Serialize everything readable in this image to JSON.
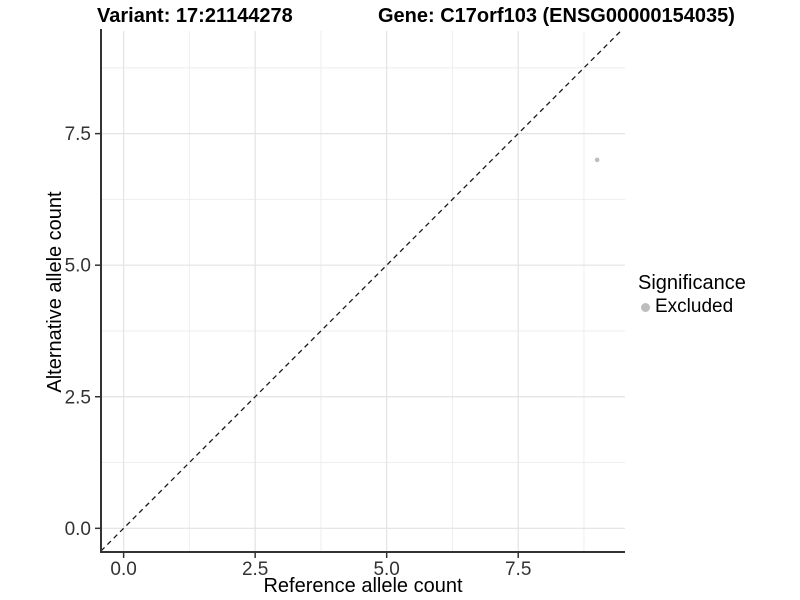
{
  "header": {
    "variant_title": "Variant: 17:21144278",
    "gene_title": "Gene: C17orf103 (ENSG00000154035)"
  },
  "legend": {
    "title": "Significance",
    "entries": [
      {
        "label": "Excluded",
        "color": "#bdbdbd"
      }
    ]
  },
  "chart_data": {
    "type": "scatter",
    "title": "Variant: 17:21144278 | Gene: C17orf103 (ENSG00000154035)",
    "xlabel": "Reference allele count",
    "ylabel": "Alternative allele count",
    "xlim": [
      -0.43,
      9.53
    ],
    "ylim": [
      -0.45,
      9.45
    ],
    "xticks": [
      0,
      2.5,
      5,
      7.5
    ],
    "xtick_labels": [
      "0.0",
      "2.5",
      "5.0",
      "7.5"
    ],
    "yticks": [
      0,
      2.5,
      5,
      7.5
    ],
    "ytick_labels": [
      "0.0",
      "2.5",
      "5.0",
      "7.5"
    ],
    "xticks_minor": [
      1.25,
      3.75,
      6.25,
      8.75
    ],
    "yticks_minor": [
      1.25,
      3.75,
      6.25,
      8.75
    ],
    "grid": true,
    "legend_position": "right",
    "reference_line": {
      "type": "identity",
      "equation": "y = x",
      "style": "dashed",
      "color": "#1a1a1a"
    },
    "series": [
      {
        "name": "Excluded",
        "color": "#bdbdbd",
        "points": [
          {
            "x": 9,
            "y": 7
          }
        ]
      }
    ],
    "style": {
      "background": "#ffffff",
      "grid_major": "#e3e3e3",
      "grid_minor": "#eeeeee",
      "axis_line": "#333333",
      "tick_mark": "#333333",
      "tick_label_color": "#333333"
    }
  }
}
